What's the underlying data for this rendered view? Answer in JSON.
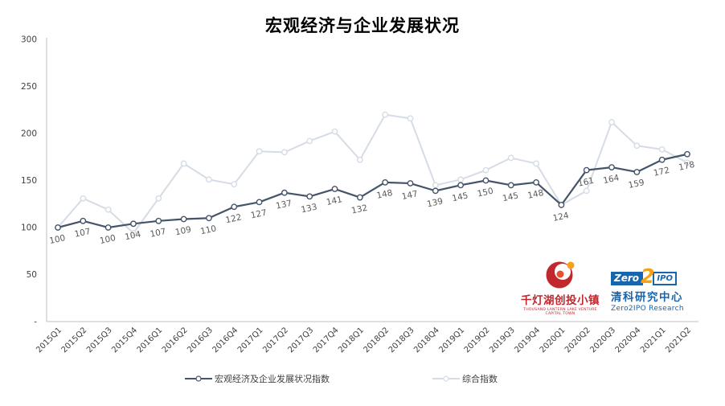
{
  "title": "宏观经济与企业发展状况",
  "chart_data": {
    "type": "line",
    "title": "宏观经济与企业发展状况",
    "categories": [
      "2015Q1",
      "2015Q2",
      "2015Q3",
      "2015Q4",
      "2016Q1",
      "2016Q2",
      "2016Q3",
      "2016Q4",
      "2017Q1",
      "2017Q2",
      "2017Q3",
      "2017Q4",
      "2018Q1",
      "2018Q2",
      "2018Q3",
      "2018Q4",
      "2019Q1",
      "2019Q2",
      "2019Q3",
      "2019Q4",
      "2020Q1",
      "2020Q2",
      "2020Q3",
      "2020Q4",
      "2021Q1",
      "2021Q2"
    ],
    "series": [
      {
        "name": "宏观经济及企业发展状况指数",
        "color": "#44546a",
        "values": [
          100,
          107,
          100,
          104,
          107,
          109,
          110,
          122,
          127,
          137,
          133,
          141,
          132,
          148,
          147,
          139,
          145,
          150,
          145,
          148,
          124,
          161,
          164,
          159,
          172,
          178
        ],
        "show_labels": true
      },
      {
        "name": "综合指数",
        "color": "#d6dce5",
        "values": [
          100,
          131,
          119,
          94,
          131,
          168,
          151,
          146,
          181,
          180,
          192,
          202,
          172,
          220,
          216,
          145,
          151,
          161,
          174,
          168,
          124,
          139,
          212,
          187,
          183,
          169
        ],
        "show_labels": false
      }
    ],
    "ylim": [
      0,
      300
    ],
    "yticks": [
      {
        "value": 300,
        "label": "300"
      },
      {
        "value": 250,
        "label": "250"
      },
      {
        "value": 200,
        "label": "200"
      },
      {
        "value": 150,
        "label": "150"
      },
      {
        "value": 100,
        "label": "100"
      },
      {
        "value": 50,
        "label": "50"
      },
      {
        "value": 0,
        "label": "-"
      }
    ],
    "grid": false,
    "legend_position": "bottom",
    "label_color": "#595959",
    "axis_color": "#bfbfbf",
    "tick_text_color": "#404040"
  },
  "logos": {
    "qdh": {
      "name": "千灯湖创投小镇",
      "subtext": "THOUSAND LANTERN LAKE VENTURE CAPITAL TOWN",
      "red": "#c1272d",
      "orange": "#f7a11a"
    },
    "zero2ipo": {
      "zero": "Zero",
      "two": "2",
      "ipo": "IPO",
      "cn": "清科研究中心",
      "en": "Zero2IPO Research",
      "blue": "#1865ab",
      "orange": "#f7a01a"
    }
  }
}
